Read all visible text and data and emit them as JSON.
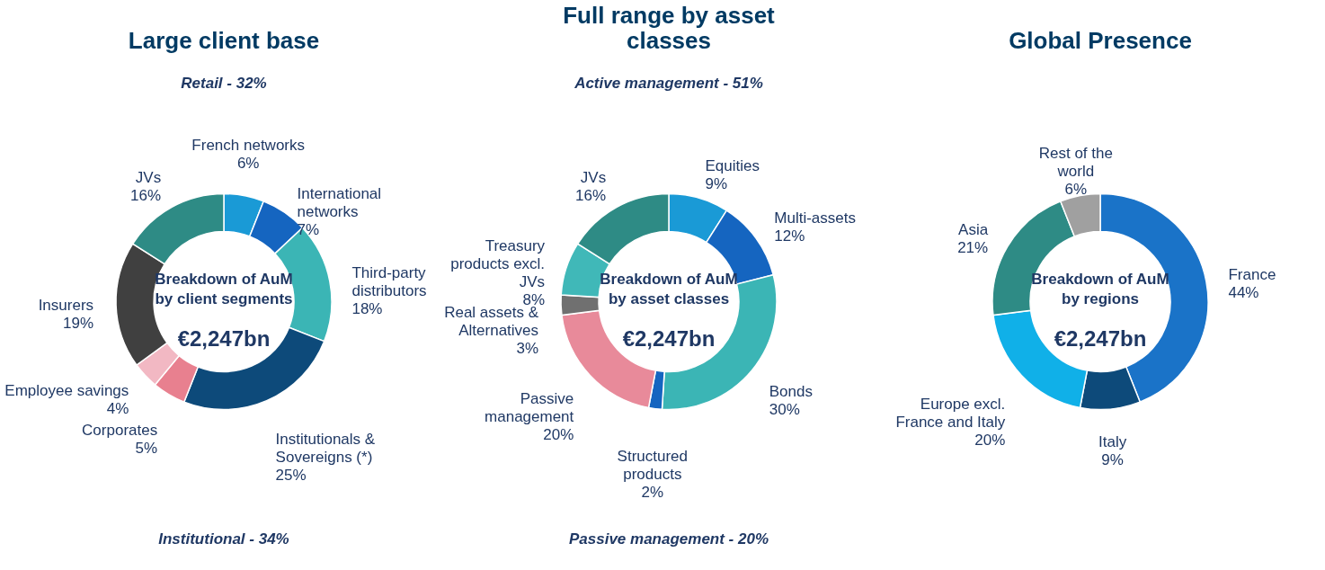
{
  "chart_data": [
    {
      "type": "donut",
      "title": "Large client base",
      "subtitle": "Breakdown of AuM by client segments",
      "categories": [
        "French networks",
        "International networks",
        "Third-party distributors",
        "Institutionals & Sovereigns (*)",
        "Corporates",
        "Employee savings",
        "Insurers",
        "JVs"
      ],
      "values": [
        6,
        7,
        18,
        25,
        5,
        4,
        19,
        16
      ],
      "value_labels": [
        "6%",
        "7%",
        "18%",
        "25%",
        "5%",
        "4%",
        "19%",
        "16%"
      ],
      "colors": [
        "#1a9ad6",
        "#1565c0",
        "#3bb5b5",
        "#0d4a7a",
        "#e8808f",
        "#f2b8c3",
        "#404040",
        "#2e8b85"
      ],
      "annotations": [
        "€2,247bn",
        "Retail - 32%",
        "Institutional - 34%"
      ]
    },
    {
      "type": "donut",
      "title": "Full range by asset classes",
      "subtitle": "Breakdown of AuM by asset classes",
      "categories": [
        "Equities",
        "Multi-assets",
        "Bonds",
        "Structured products",
        "Passive management",
        "Real assets & Alternatives",
        "Treasury products excl. JVs",
        "JVs"
      ],
      "values": [
        9,
        12,
        30,
        2,
        20,
        3,
        8,
        16
      ],
      "value_labels": [
        "9%",
        "12%",
        "30%",
        "2%",
        "20%",
        "3%",
        "8%",
        "16%"
      ],
      "colors": [
        "#1a9ad6",
        "#1565c0",
        "#3bb5b5",
        "#1565c0",
        "#e88a9a",
        "#707070",
        "#40b8b8",
        "#2e8b85"
      ],
      "annotations": [
        "€2,247bn",
        "Active management - 51%",
        "Passive management - 20%"
      ]
    },
    {
      "type": "donut",
      "title": "Global Presence",
      "subtitle": "Breakdown of AuM by regions",
      "categories": [
        "France",
        "Italy",
        "Europe excl. France and Italy",
        "Asia",
        "Rest of the world"
      ],
      "values": [
        44,
        9,
        20,
        21,
        6
      ],
      "value_labels": [
        "44%",
        "9%",
        "20%",
        "21%",
        "6%"
      ],
      "colors": [
        "#1a73c8",
        "#0d4a7a",
        "#10b0e8",
        "#2e8b85",
        "#a0a0a0"
      ],
      "annotations": [
        "€2,247bn"
      ]
    }
  ]
}
